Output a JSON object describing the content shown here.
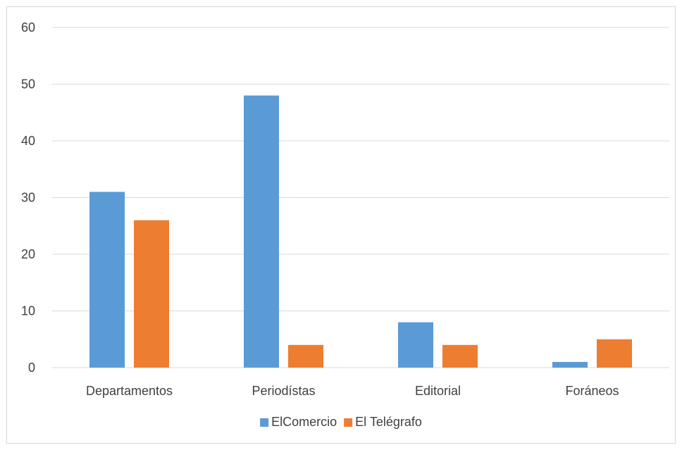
{
  "chart_data": {
    "type": "bar",
    "categories": [
      "Departamentos",
      "Periodístas",
      "Editorial",
      "Foráneos"
    ],
    "series": [
      {
        "name": "ElComercio",
        "values": [
          31,
          48,
          8,
          1
        ],
        "color": "#5b9bd5"
      },
      {
        "name": "El Telégrafo",
        "values": [
          26,
          4,
          4,
          5
        ],
        "color": "#ed7d31"
      }
    ],
    "yticks": [
      "0",
      "10",
      "20",
      "30",
      "40",
      "50",
      "60"
    ],
    "ylim": [
      0,
      60
    ],
    "grid": true,
    "legend_position": "bottom-center",
    "gridline_color": "#d9d9d9"
  }
}
